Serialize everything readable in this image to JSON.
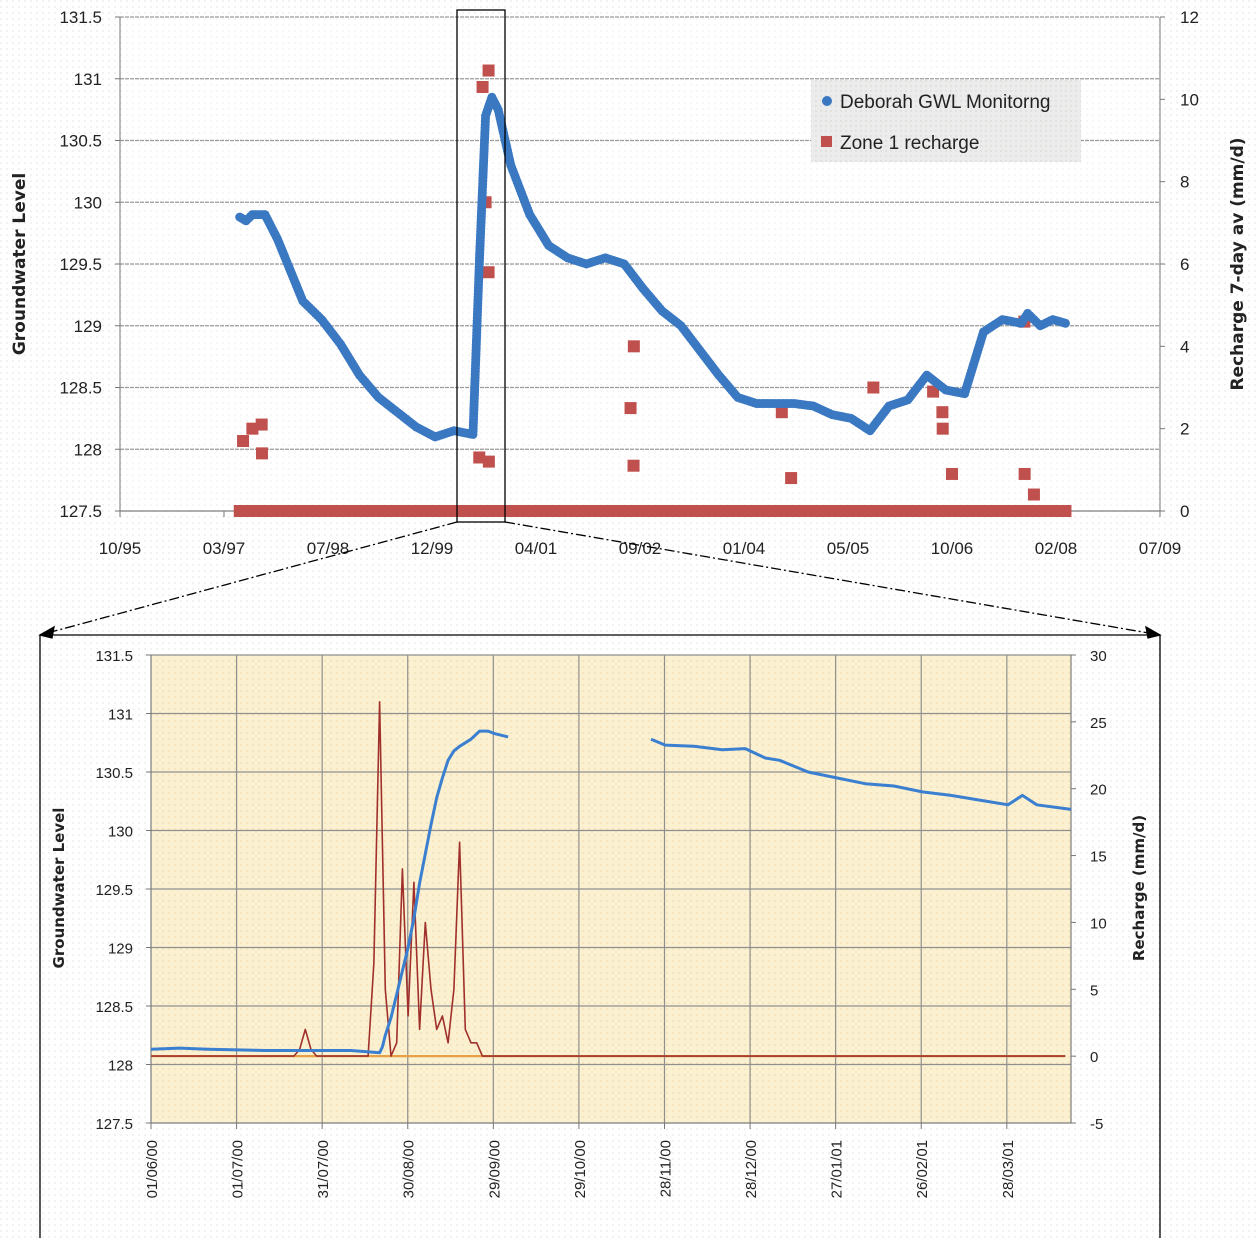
{
  "chart_data": [
    {
      "type": "scatter",
      "y_axis_left": {
        "label": "Groundwater Level",
        "ylim": [
          127.5,
          131.5
        ],
        "ticks": [
          "127.5",
          "128",
          "128.5",
          "129",
          "129.5",
          "130",
          "130.5",
          "131",
          "131.5"
        ]
      },
      "y_axis_right": {
        "label": "Recharge 7-day av (mm/d)",
        "ylim": [
          0,
          12
        ],
        "ticks": [
          "0",
          "2",
          "4",
          "6",
          "8",
          "10",
          "12"
        ]
      },
      "x_axis": {
        "ticks": [
          "10/95",
          "03/97",
          "07/98",
          "12/99",
          "04/01",
          "09/02",
          "01/04",
          "05/05",
          "10/06",
          "02/08",
          "07/09"
        ]
      },
      "grid": true,
      "legend": {
        "position": "top-right",
        "entries": [
          "Deborah GWL Monitorng",
          "Zone 1 recharge"
        ]
      },
      "series": [
        {
          "name": "Deborah GWL Monitorng",
          "axis": "left",
          "color": "#3a78c2",
          "marker": "circle",
          "x": [
            "1997-05",
            "1997-06",
            "1997-07",
            "1997-09",
            "1997-11",
            "1998-01",
            "1998-03",
            "1998-06",
            "1998-09",
            "1998-12",
            "1999-03",
            "1999-06",
            "1999-09",
            "1999-12",
            "2000-03",
            "2000-06",
            "2000-07",
            "2000-08",
            "2000-09",
            "2000-10",
            "2000-12",
            "2001-03",
            "2001-06",
            "2001-09",
            "2001-12",
            "2002-03",
            "2002-06",
            "2002-09",
            "2002-12",
            "2003-03",
            "2003-06",
            "2003-09",
            "2003-12",
            "2004-03",
            "2004-06",
            "2004-09",
            "2004-12",
            "2005-03",
            "2005-06",
            "2005-09",
            "2005-12",
            "2006-03",
            "2006-06",
            "2006-09",
            "2006-12",
            "2007-03",
            "2007-06",
            "2007-09",
            "2007-10",
            "2007-11",
            "2007-12",
            "2008-02",
            "2008-04"
          ],
          "y": [
            129.88,
            129.85,
            129.9,
            129.9,
            129.7,
            129.45,
            129.2,
            129.05,
            128.85,
            128.6,
            128.42,
            128.3,
            128.18,
            128.1,
            128.15,
            128.12,
            129.5,
            130.7,
            130.85,
            130.75,
            130.3,
            129.9,
            129.65,
            129.55,
            129.5,
            129.55,
            129.5,
            129.3,
            129.12,
            129.0,
            128.8,
            128.6,
            128.42,
            128.37,
            128.37,
            128.37,
            128.35,
            128.28,
            128.25,
            128.15,
            128.35,
            128.4,
            128.6,
            128.48,
            128.45,
            128.95,
            129.05,
            129.02,
            129.1,
            129.05,
            129.0,
            129.05,
            129.02
          ]
        },
        {
          "name": "Zone 1 recharge",
          "axis": "right",
          "color": "#c0504d",
          "marker": "square",
          "x": [
            "1997-06",
            "1997-07",
            "1997-08",
            "1997-09",
            "2000-07",
            "2000-08",
            "2000-08",
            "2000-08",
            "2000-08",
            "2000-09",
            "2002-07",
            "2002-07",
            "2002-08",
            "2004-07",
            "2004-08",
            "2005-10",
            "2006-07",
            "2006-08",
            "2006-09",
            "2006-10",
            "2007-09",
            "2007-10",
            "2007-11"
          ],
          "y": [
            1.7,
            2.0,
            2.1,
            1.4,
            1.3,
            10.7,
            10.3,
            7.5,
            5.8,
            1.2,
            2.5,
            1.1,
            4.0,
            2.4,
            0.8,
            3.0,
            2.9,
            2.4,
            2.0,
            0.9,
            4.6,
            0.9,
            0.4
          ],
          "baseline": 0.0
        }
      ]
    },
    {
      "type": "line",
      "y_axis_left": {
        "label": "Groundwater Level",
        "ylim": [
          127.5,
          131.5
        ],
        "ticks": [
          "127.5",
          "128",
          "128.5",
          "129",
          "129.5",
          "130",
          "130.5",
          "131",
          "131.5"
        ]
      },
      "y_axis_right": {
        "label": "Recharge (mm/d)",
        "ylim": [
          -5,
          30
        ],
        "ticks": [
          "-5",
          "0",
          "5",
          "10",
          "15",
          "20",
          "25",
          "30"
        ]
      },
      "x_axis": {
        "ticks": [
          "01/06/00",
          "01/07/00",
          "31/07/00",
          "30/08/00",
          "29/09/00",
          "29/10/00",
          "28/11/00",
          "28/12/00",
          "27/01/01",
          "26/02/01",
          "28/03/01"
        ]
      },
      "grid": true,
      "series": [
        {
          "axis": "left",
          "color": "#3a7fd0",
          "x_days": [
            0,
            10,
            20,
            40,
            60,
            70,
            75,
            80,
            81,
            82,
            84,
            86,
            88,
            90,
            92,
            94,
            96,
            98,
            100,
            102,
            104,
            106,
            108,
            110,
            112,
            115,
            118,
            120,
            125,
            130,
            135,
            140
          ],
          "y": [
            128.13,
            128.14,
            128.13,
            128.12,
            128.12,
            128.12,
            128.11,
            128.1,
            128.15,
            128.25,
            128.4,
            128.6,
            128.8,
            129.0,
            129.25,
            129.55,
            129.8,
            130.05,
            130.28,
            130.45,
            130.6,
            130.68,
            130.72,
            130.75,
            130.78,
            130.85,
            130.85,
            130.83,
            130.8,
            null,
            null,
            null
          ]
        },
        {
          "axis": "left",
          "color": "#3a7fd0",
          "x_days": [
            175,
            180,
            190,
            200,
            208,
            215,
            220,
            230,
            240,
            250,
            260,
            270,
            280,
            290,
            300,
            305,
            310,
            322
          ],
          "y": [
            130.78,
            130.73,
            130.72,
            130.69,
            130.7,
            130.62,
            130.6,
            130.5,
            130.45,
            130.4,
            130.38,
            130.33,
            130.3,
            130.26,
            130.22,
            130.3,
            130.22,
            130.18
          ]
        },
        {
          "axis": "right",
          "color": "#a0302c",
          "x_days": [
            0,
            50,
            52,
            54,
            56,
            58,
            70,
            76,
            78,
            80,
            82,
            84,
            86,
            88,
            90,
            92,
            94,
            96,
            98,
            100,
            102,
            104,
            106,
            108,
            110,
            112,
            114,
            116,
            118,
            320
          ],
          "y": [
            0,
            0,
            0.5,
            2,
            0.5,
            0,
            0,
            0,
            7,
            26.5,
            5,
            0,
            1,
            14,
            3,
            13,
            2,
            10,
            5,
            2,
            3,
            1,
            5,
            16,
            2,
            1,
            1,
            0,
            0,
            0
          ]
        },
        {
          "axis": "right",
          "color": "#e7a146",
          "x_days": [
            0,
            320
          ],
          "y": [
            0,
            0
          ]
        }
      ]
    }
  ]
}
